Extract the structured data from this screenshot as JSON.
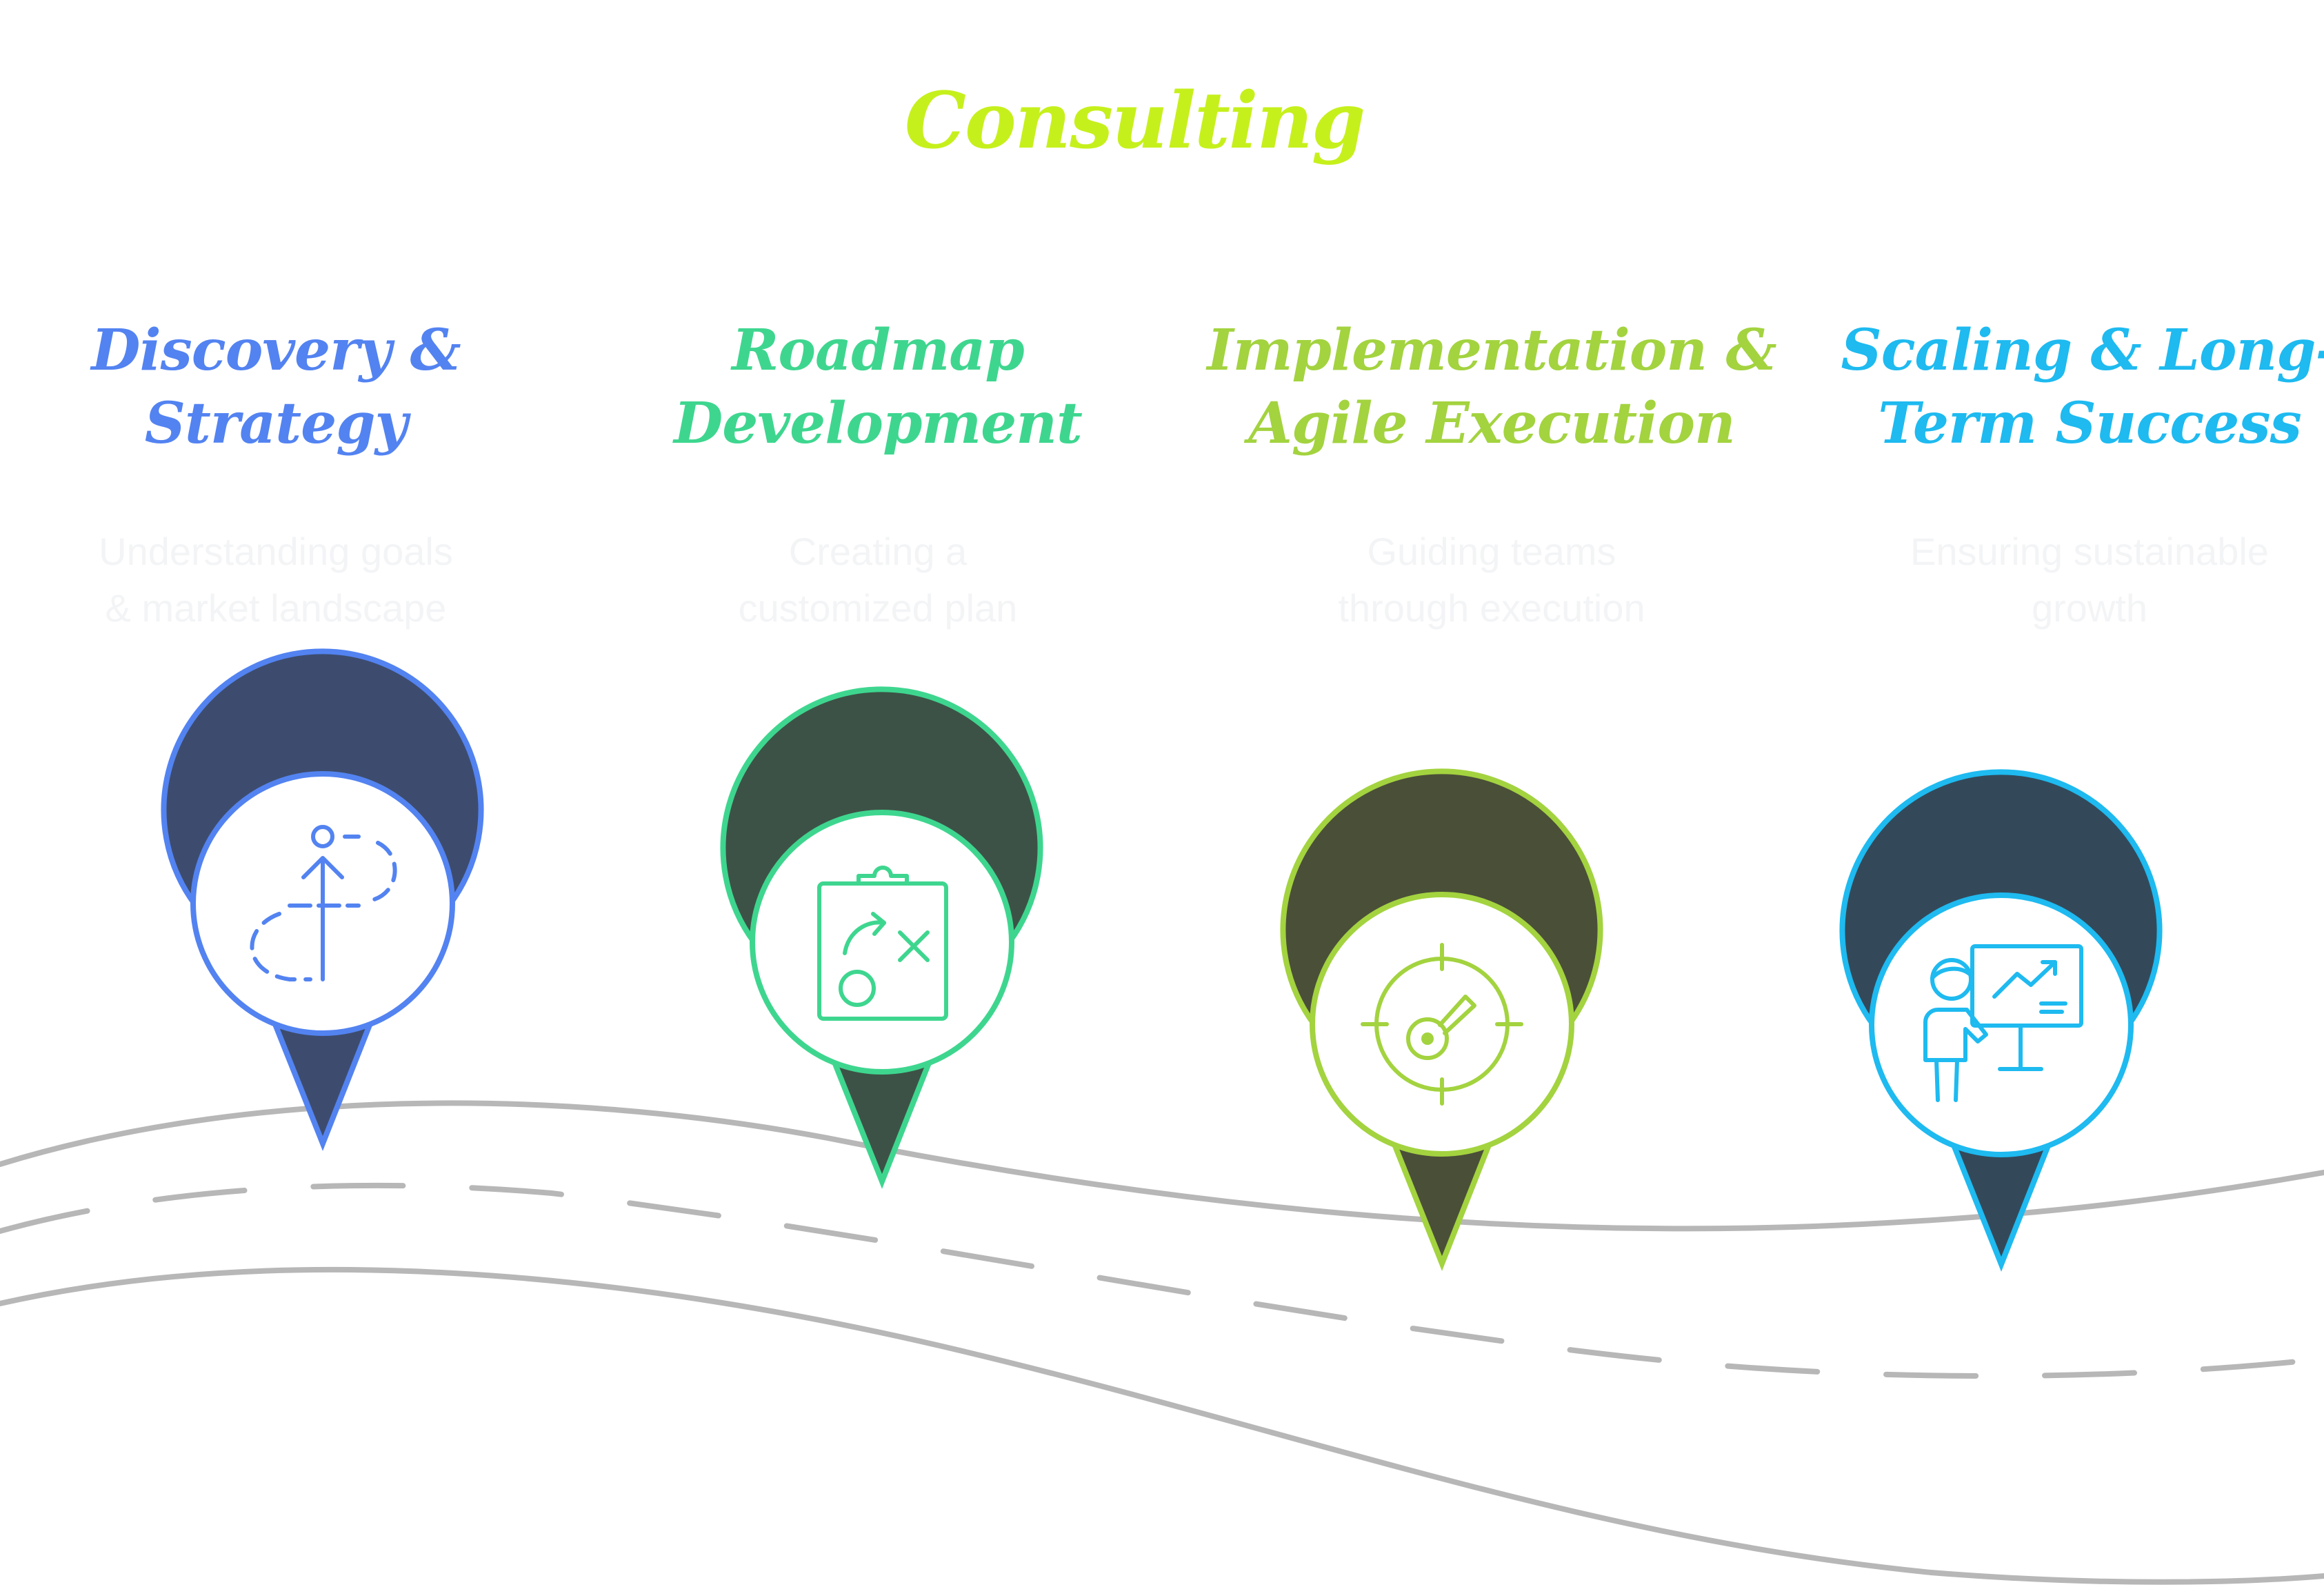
{
  "title": "Consulting",
  "stages": [
    {
      "title_line1": "Discovery &",
      "title_line2": "Strategy",
      "desc_line1": "Understanding goals",
      "desc_line2": "& market landscape",
      "color": "#5383f1",
      "icon": "growth-path-icon"
    },
    {
      "title_line1": "Roadmap",
      "title_line2": "Development",
      "desc_line1": "Creating a",
      "desc_line2": "customized plan",
      "color": "#3ed68f",
      "icon": "strategy-clipboard-icon"
    },
    {
      "title_line1": "Implementation &",
      "title_line2": "Agile  Execution",
      "desc_line1": "Guiding teams",
      "desc_line2": "through execution",
      "color": "#a3d33f",
      "icon": "target-icon"
    },
    {
      "title_line1": "Scaling & Long-",
      "title_line2": "Term Success",
      "desc_line1": "Ensuring sustainable",
      "desc_line2": "growth",
      "color": "#1ebaf0",
      "icon": "presentation-icon"
    }
  ],
  "colors": {
    "title": "#c6f01c",
    "road": "#b7b7b7",
    "pin_fill_1": "#3d4c6e",
    "pin_fill_2": "#3d5246",
    "pin_fill_3": "#4a4f38",
    "pin_fill_4": "#33495a"
  }
}
